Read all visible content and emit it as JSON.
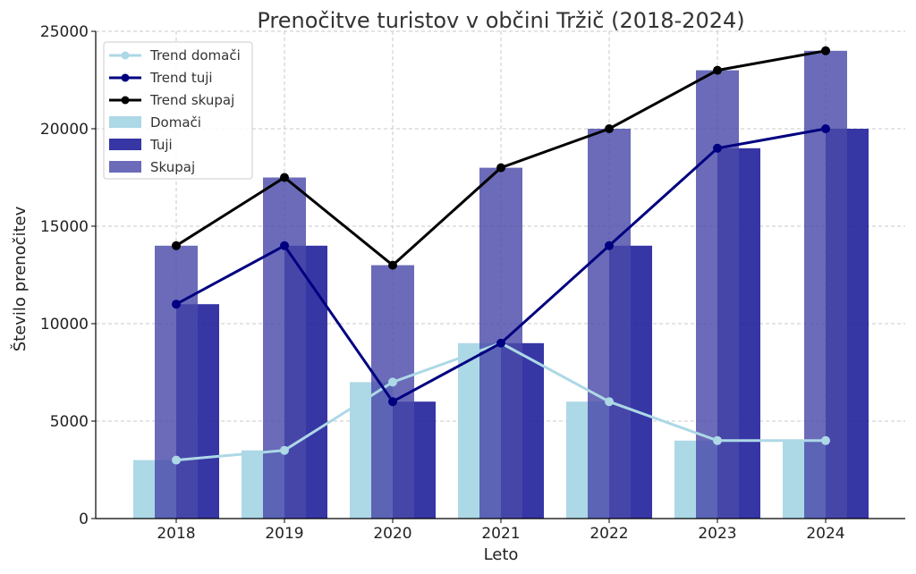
{
  "chart_data": {
    "type": "bar",
    "title": "Prenočitve turistov v občini Tržič (2018-2024)",
    "xlabel": "Leto",
    "ylabel": "Število prenočitev",
    "categories": [
      "2018",
      "2019",
      "2020",
      "2021",
      "2022",
      "2023",
      "2024"
    ],
    "ylim": [
      0,
      25000
    ],
    "yticks": [
      0,
      5000,
      10000,
      15000,
      20000,
      25000
    ],
    "grid": true,
    "legend_position": "top-left",
    "bar_series": [
      {
        "name": "Domači",
        "color": "#add8e6",
        "values": [
          3000,
          3500,
          7000,
          9000,
          6000,
          4000,
          4000
        ]
      },
      {
        "name": "Tuji",
        "color": "#1a1a99",
        "values": [
          11000,
          14000,
          6000,
          9000,
          14000,
          19000,
          20000
        ]
      },
      {
        "name": "Skupaj",
        "color": "#4a4aaa",
        "values": [
          14000,
          17500,
          13000,
          18000,
          20000,
          23000,
          24000
        ]
      }
    ],
    "line_series": [
      {
        "name": "Trend domači",
        "color": "#add8e6",
        "values": [
          3000,
          3500,
          7000,
          9000,
          6000,
          4000,
          4000
        ]
      },
      {
        "name": "Trend tuji",
        "color": "#000080",
        "values": [
          11000,
          14000,
          6000,
          9000,
          14000,
          19000,
          20000
        ]
      },
      {
        "name": "Trend skupaj",
        "color": "#000000",
        "values": [
          14000,
          17500,
          13000,
          18000,
          20000,
          23000,
          24000
        ]
      }
    ]
  }
}
